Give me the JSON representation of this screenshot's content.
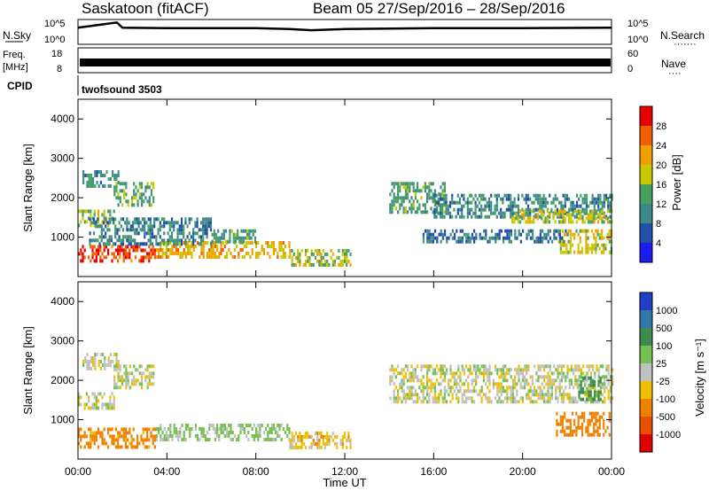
{
  "header": {
    "title": "Saskatoon (fitACF)",
    "subtitle": "Beam 05  27/Sep/2016 – 28/Sep/2016"
  },
  "panels": {
    "nsky": {
      "left_label": "N.Sky",
      "left_ticks": [
        "10^5",
        "10^0"
      ],
      "right_ticks": [
        "10^5",
        "10^0"
      ],
      "right_label": "N.Search",
      "right_dots": "·······"
    },
    "freq": {
      "left_label_line1": "Freq.",
      "left_label_line2": "[MHz]",
      "left_ticks": [
        "18",
        "8"
      ],
      "right_ticks": [
        "60",
        "0"
      ],
      "right_label": "Nave",
      "right_dots": "····"
    },
    "cpid": {
      "label": "CPID",
      "program": "twofsound 3503"
    }
  },
  "axes": {
    "xlabel": "Time UT",
    "x_ticks": [
      "00:00",
      "04:00",
      "08:00",
      "12:00",
      "16:00",
      "20:00",
      "00:00"
    ],
    "ylabel": "Slant Range [km]",
    "y_ticks": [
      "1000",
      "2000",
      "3000",
      "4000"
    ]
  },
  "colorbars": {
    "power": {
      "label": "Power [dB]",
      "ticks": [
        "4",
        "8",
        "12",
        "16",
        "20",
        "24",
        "28"
      ],
      "colors": [
        "#1c1cf0",
        "#2050a8",
        "#3e8a8a",
        "#46a060",
        "#c8c800",
        "#f0a000",
        "#f06000",
        "#e80000"
      ]
    },
    "velocity": {
      "label": "Velocity [m s⁻¹]",
      "ticks": [
        "1000",
        "500",
        "100",
        "25",
        "-25",
        "-100",
        "-500",
        "-1000"
      ],
      "colors": [
        "#2040c8",
        "#2f78a8",
        "#3c8c50",
        "#74c050",
        "#c0c0c0",
        "#f0c000",
        "#f08000",
        "#e85000",
        "#e00000"
      ]
    }
  },
  "chart_data": [
    {
      "type": "line",
      "name": "N.Sky / N.Search",
      "x_range_hours": [
        0,
        24
      ],
      "y_scale": "log",
      "ylim": [
        1,
        100000
      ],
      "x": [
        0,
        1.75,
        2,
        4,
        8,
        9.5,
        10.5,
        12,
        16,
        20,
        24
      ],
      "values": [
        3000,
        50000,
        3000,
        2500,
        2500,
        1500,
        800,
        1500,
        2500,
        2500,
        3000
      ]
    },
    {
      "type": "line",
      "name": "Freq / Nave",
      "x_range_hours": [
        0,
        24
      ],
      "ylim": [
        8,
        18
      ],
      "x": [
        0,
        24
      ],
      "values": [
        11.5,
        11.5
      ],
      "note_alternating": true
    },
    {
      "type": "heatmap",
      "title": "Power [dB]",
      "x_range_hours": [
        0,
        24
      ],
      "ylim": [
        0,
        4500
      ],
      "clim": [
        0,
        30
      ],
      "regions": [
        {
          "t0": 0.0,
          "t1": 1.6,
          "r0": 1300,
          "r1": 1700,
          "level": 16
        },
        {
          "t0": 0.2,
          "t1": 1.8,
          "r0": 2300,
          "r1": 2700,
          "level": 10
        },
        {
          "t0": 1.6,
          "t1": 3.4,
          "r0": 1800,
          "r1": 2400,
          "level": 13
        },
        {
          "t0": 0.0,
          "t1": 3.5,
          "r0": 400,
          "r1": 800,
          "level": 26
        },
        {
          "t0": 3.5,
          "t1": 9.5,
          "r0": 500,
          "r1": 900,
          "level": 20
        },
        {
          "t0": 6.0,
          "t1": 8.0,
          "r0": 900,
          "r1": 1200,
          "level": 12
        },
        {
          "t0": 9.5,
          "t1": 12.3,
          "r0": 300,
          "r1": 700,
          "level": 16
        },
        {
          "t0": 0.5,
          "t1": 6.0,
          "r0": 800,
          "r1": 1500,
          "level": 9
        },
        {
          "t0": 14.0,
          "t1": 16.5,
          "r0": 1600,
          "r1": 2400,
          "level": 12
        },
        {
          "t0": 16.0,
          "t1": 24.0,
          "r0": 1500,
          "r1": 2100,
          "level": 10
        },
        {
          "t0": 19.5,
          "t1": 24.0,
          "r0": 1400,
          "r1": 1700,
          "level": 17
        },
        {
          "t0": 21.5,
          "t1": 24.0,
          "r0": 600,
          "r1": 1200,
          "level": 18
        },
        {
          "t0": 15.5,
          "t1": 22.0,
          "r0": 900,
          "r1": 1200,
          "level": 8
        }
      ]
    },
    {
      "type": "heatmap",
      "title": "Velocity [m s⁻¹]",
      "x_range_hours": [
        0,
        24
      ],
      "ylim": [
        0,
        4500
      ],
      "clim": [
        -1000,
        1000
      ],
      "regions": [
        {
          "t0": 0.0,
          "t1": 1.6,
          "r0": 1300,
          "r1": 1700,
          "level": 0
        },
        {
          "t0": 0.2,
          "t1": 1.8,
          "r0": 2300,
          "r1": 2700,
          "level": 0
        },
        {
          "t0": 1.6,
          "t1": 3.4,
          "r0": 1800,
          "r1": 2400,
          "level": 0
        },
        {
          "t0": 0.0,
          "t1": 3.5,
          "r0": 300,
          "r1": 800,
          "level": -150
        },
        {
          "t0": 3.5,
          "t1": 9.5,
          "r0": 500,
          "r1": 900,
          "level": 40
        },
        {
          "t0": 9.5,
          "t1": 12.3,
          "r0": 300,
          "r1": 700,
          "level": -60
        },
        {
          "t0": 14.0,
          "t1": 24.0,
          "r0": 1500,
          "r1": 2400,
          "level": 0
        },
        {
          "t0": 21.5,
          "t1": 24.0,
          "r0": 600,
          "r1": 1200,
          "level": -200
        },
        {
          "t0": 22.5,
          "t1": 23.5,
          "r0": 1500,
          "r1": 2100,
          "level": 120
        }
      ]
    }
  ]
}
